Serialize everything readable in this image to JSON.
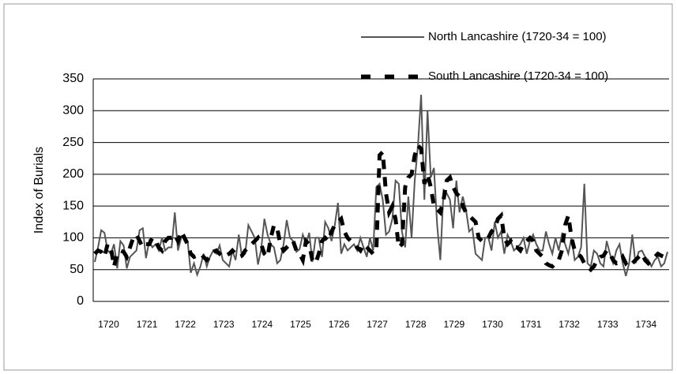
{
  "chart_data": {
    "type": "line",
    "y_label": "Index of Burials",
    "categories": [
      "1720",
      null,
      null,
      null,
      null,
      null,
      null,
      null,
      null,
      null,
      null,
      null,
      "1721",
      null,
      null,
      null,
      null,
      null,
      null,
      null,
      null,
      null,
      null,
      null,
      "1722",
      null,
      null,
      null,
      null,
      null,
      null,
      null,
      null,
      null,
      null,
      null,
      "1723",
      null,
      null,
      null,
      null,
      null,
      null,
      null,
      null,
      null,
      null,
      null,
      "1724",
      null,
      null,
      null,
      null,
      null,
      null,
      null,
      null,
      null,
      null,
      null,
      "1725",
      null,
      null,
      null,
      null,
      null,
      null,
      null,
      null,
      null,
      null,
      null,
      "1726",
      null,
      null,
      null,
      null,
      null,
      null,
      null,
      null,
      null,
      null,
      null,
      "1727",
      null,
      null,
      null,
      null,
      null,
      null,
      null,
      null,
      null,
      null,
      null,
      "1728",
      null,
      null,
      null,
      null,
      null,
      null,
      null,
      null,
      null,
      null,
      null,
      "1729",
      null,
      null,
      null,
      null,
      null,
      null,
      null,
      null,
      null,
      null,
      null,
      "1730",
      null,
      null,
      null,
      null,
      null,
      null,
      null,
      null,
      null,
      null,
      null,
      "1731",
      null,
      null,
      null,
      null,
      null,
      null,
      null,
      null,
      null,
      null,
      null,
      "1732",
      null,
      null,
      null,
      null,
      null,
      null,
      null,
      null,
      null,
      null,
      null,
      "1733",
      null,
      null,
      null,
      null,
      null,
      null,
      null,
      null,
      null,
      null,
      null,
      "1734",
      null,
      null,
      null,
      null,
      null,
      null,
      null,
      null,
      null,
      null,
      null
    ],
    "series": [
      {
        "name": "North Lancashire (1720-34 = 100)",
        "color": "#555555",
        "dash": "solid",
        "values": [
          62,
          85,
          112,
          108,
          80,
          75,
          90,
          52,
          95,
          88,
          52,
          70,
          75,
          80,
          112,
          115,
          68,
          95,
          85,
          90,
          80,
          100,
          80,
          85,
          85,
          140,
          80,
          100,
          105,
          95,
          45,
          60,
          42,
          55,
          75,
          55,
          70,
          80,
          75,
          88,
          65,
          60,
          55,
          80,
          65,
          105,
          70,
          75,
          120,
          110,
          100,
          58,
          82,
          130,
          105,
          90,
          85,
          60,
          65,
          90,
          128,
          100,
          95,
          78,
          82,
          105,
          90,
          108,
          62,
          100,
          100,
          70,
          125,
          115,
          95,
          120,
          155,
          75,
          90,
          80,
          85,
          90,
          80,
          100,
          85,
          70,
          100,
          80,
          180,
          185,
          160,
          105,
          110,
          130,
          190,
          185,
          110,
          85,
          165,
          100,
          190,
          245,
          325,
          160,
          300,
          195,
          210,
          120,
          65,
          175,
          170,
          160,
          115,
          190,
          140,
          165,
          145,
          110,
          115,
          75,
          70,
          65,
          100,
          100,
          80,
          125,
          100,
          110,
          75,
          105,
          95,
          80,
          85,
          90,
          100,
          75,
          95,
          105,
          90,
          80,
          80,
          110,
          90,
          75,
          100,
          80,
          105,
          90,
          75,
          100,
          65,
          70,
          85,
          185,
          60,
          55,
          80,
          75,
          60,
          55,
          95,
          75,
          60,
          80,
          90,
          60,
          40,
          60,
          105,
          60,
          78,
          80,
          70,
          65,
          55,
          65,
          70,
          55,
          60,
          78
        ]
      },
      {
        "name": "South Lancashire (1720-34 = 100)",
        "color": "#000000",
        "dash": "dashed",
        "values": [
          75,
          80,
          78,
          70,
          90,
          85,
          55,
          75,
          80,
          78,
          70,
          85,
          100,
          105,
          95,
          85,
          90,
          90,
          100,
          95,
          85,
          80,
          95,
          100,
          100,
          105,
          95,
          110,
          100,
          90,
          75,
          70,
          72,
          75,
          70,
          65,
          70,
          78,
          80,
          75,
          70,
          72,
          75,
          80,
          75,
          70,
          72,
          80,
          85,
          90,
          95,
          100,
          90,
          75,
          70,
          100,
          120,
          115,
          90,
          80,
          85,
          90,
          95,
          80,
          75,
          65,
          95,
          90,
          65,
          60,
          75,
          95,
          100,
          95,
          110,
          120,
          125,
          130,
          110,
          100,
          95,
          90,
          85,
          80,
          90,
          85,
          80,
          75,
          80,
          230,
          235,
          170,
          140,
          150,
          130,
          85,
          90,
          180,
          195,
          200,
          230,
          245,
          240,
          185,
          200,
          180,
          150,
          145,
          140,
          160,
          190,
          195,
          180,
          170,
          165,
          150,
          140,
          135,
          130,
          125,
          100,
          95,
          95,
          100,
          110,
          115,
          130,
          135,
          100,
          90,
          95,
          85,
          85,
          80,
          90,
          95,
          100,
          95,
          80,
          75,
          70,
          60,
          57,
          55,
          60,
          65,
          80,
          120,
          135,
          100,
          80,
          75,
          70,
          60,
          55,
          50,
          55,
          65,
          70,
          72,
          80,
          75,
          65,
          60,
          62,
          70,
          60,
          65,
          60,
          65,
          70,
          75,
          65,
          60,
          65,
          70,
          75,
          72,
          70,
          68
        ]
      }
    ],
    "ylim": [
      0,
      350
    ],
    "yticks": [
      0,
      50,
      100,
      150,
      200,
      250,
      300,
      350
    ],
    "grid": true,
    "legend": "top-right"
  }
}
